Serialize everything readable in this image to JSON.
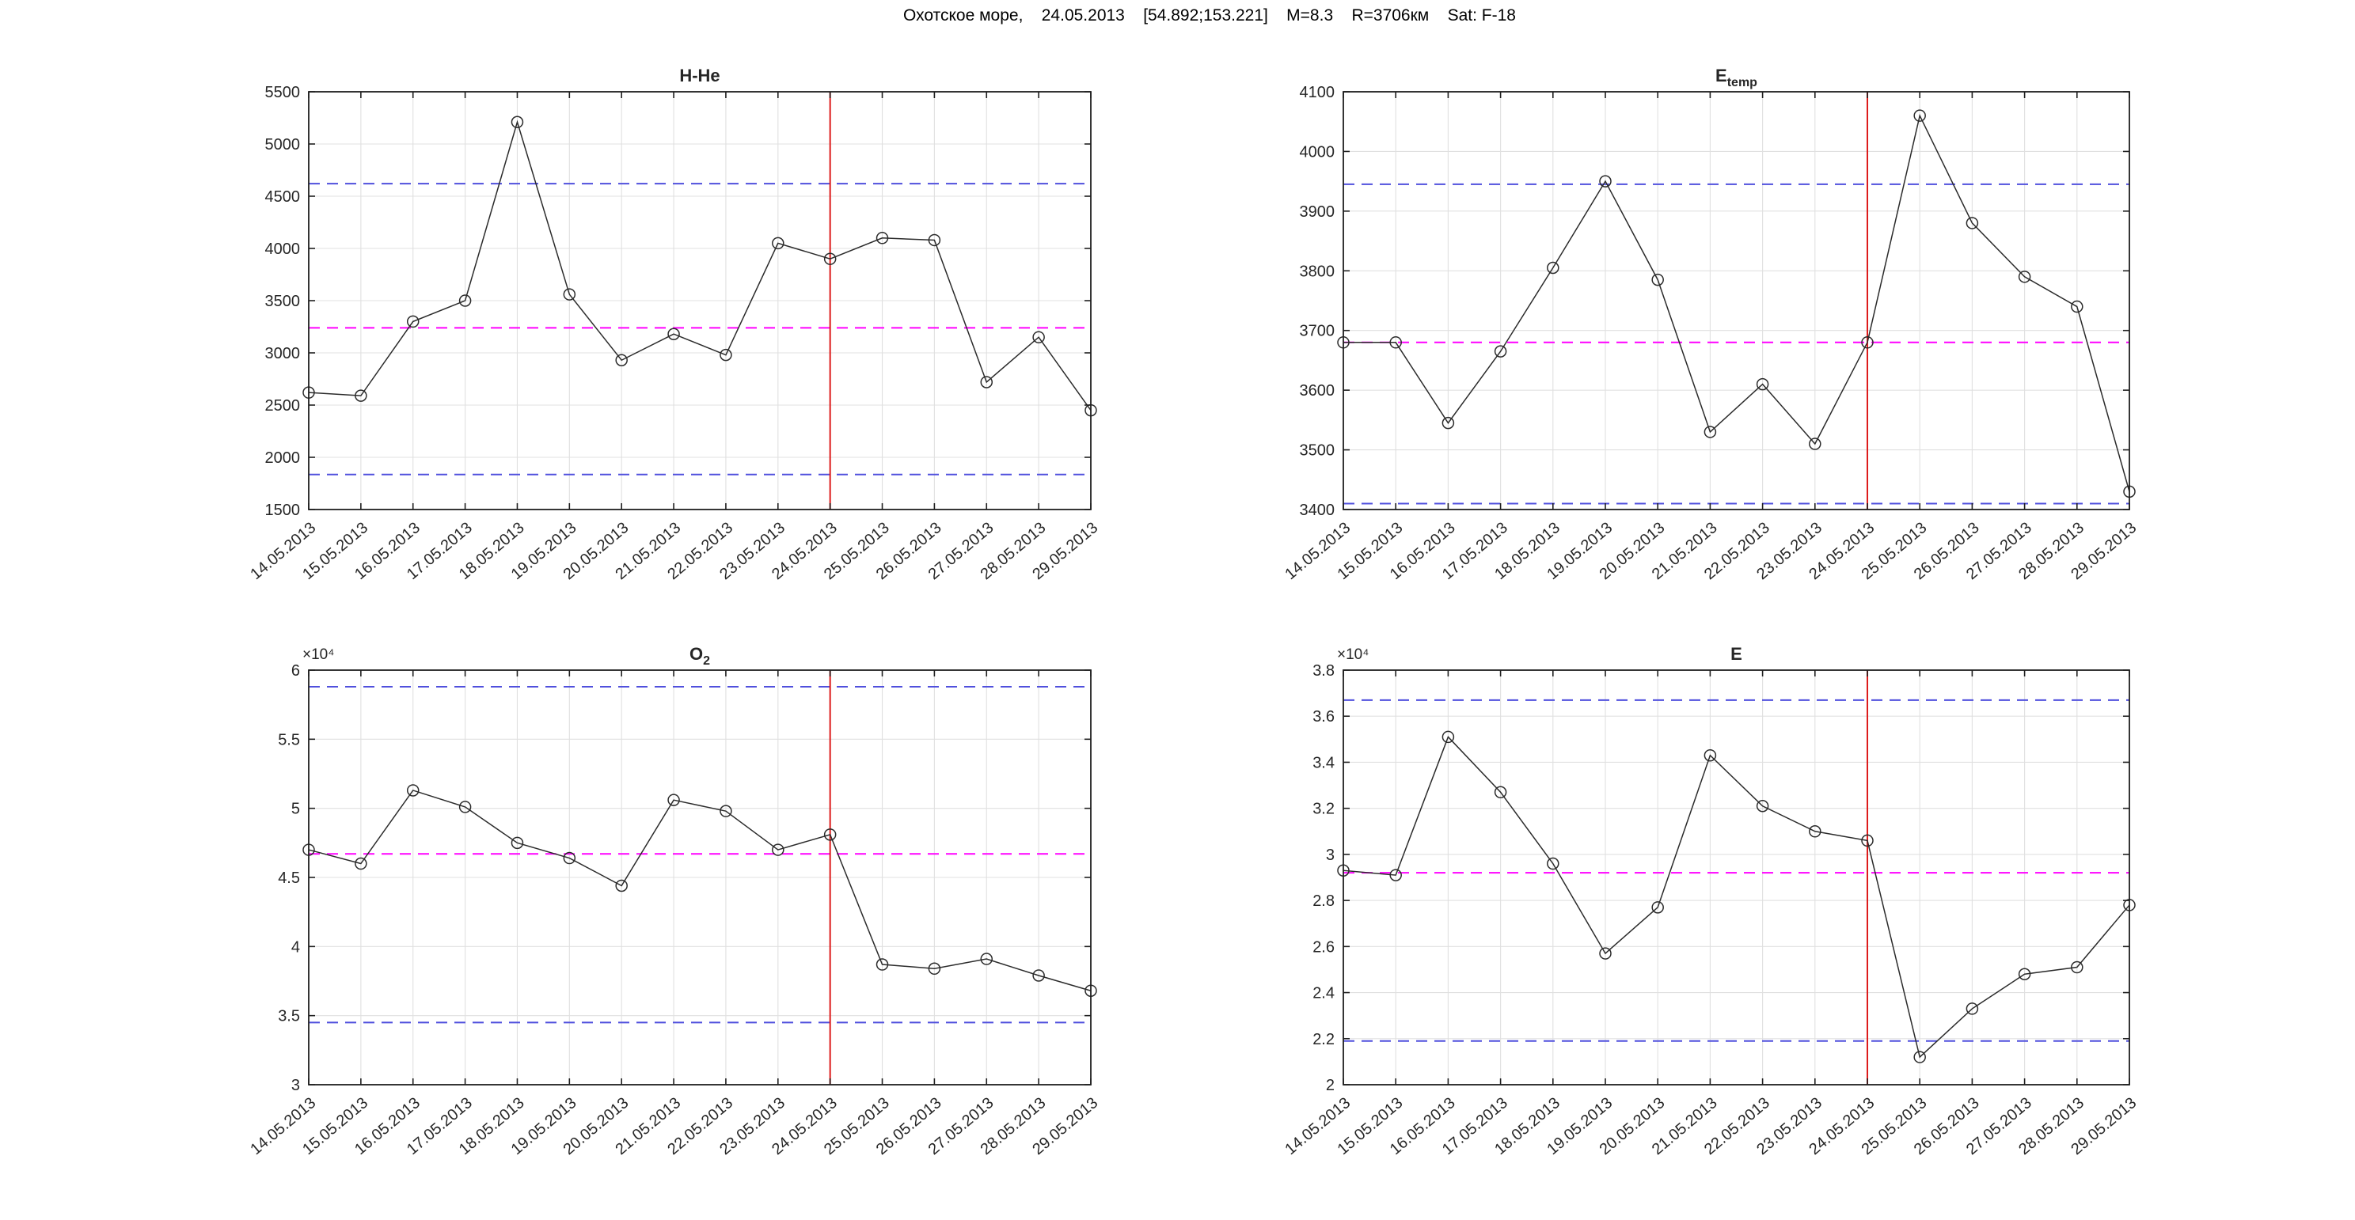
{
  "header": {
    "title": "Охотское море,    24.05.2013    [54.892;153.221]    M=8.3    R=3706км    Sat: F-18"
  },
  "styles": {
    "series_color": "#2b2b2b",
    "marker_color": "#2b2b2b",
    "bound_color": "#5050dd",
    "mean_color": "#ff00ff",
    "event_color": "#dd1c1c",
    "grid_color": "#e0e0e0",
    "axis_color": "#1f1f1f",
    "label_color": "#262626",
    "background": "#ffffff"
  },
  "chart_data": [
    {
      "id": "h-he",
      "type": "line",
      "title_main": "H-He",
      "title_sub": "",
      "x_dates": [
        "14.05.2013",
        "15.05.2013",
        "16.05.2013",
        "17.05.2013",
        "18.05.2013",
        "19.05.2013",
        "20.05.2013",
        "21.05.2013",
        "22.05.2013",
        "23.05.2013",
        "24.05.2013",
        "25.05.2013",
        "26.05.2013",
        "27.05.2013",
        "28.05.2013",
        "29.05.2013"
      ],
      "values": [
        2620,
        2590,
        3300,
        3500,
        5210,
        3560,
        2930,
        3180,
        2980,
        4050,
        3900,
        4100,
        4080,
        2720,
        3150,
        2450
      ],
      "ylim": [
        1500,
        5500
      ],
      "ytick_step": 500,
      "y_scale": 1,
      "y_scale_label": "",
      "upper_bound": 4620,
      "mean_line": 3240,
      "lower_bound": 1835,
      "event_date": "24.05.2013",
      "grid": "on",
      "legend": "none"
    },
    {
      "id": "e-temp",
      "type": "line",
      "title_main": "E",
      "title_sub": "temp",
      "x_dates": [
        "14.05.2013",
        "15.05.2013",
        "16.05.2013",
        "17.05.2013",
        "18.05.2013",
        "19.05.2013",
        "20.05.2013",
        "21.05.2013",
        "22.05.2013",
        "23.05.2013",
        "24.05.2013",
        "25.05.2013",
        "26.05.2013",
        "27.05.2013",
        "28.05.2013",
        "29.05.2013"
      ],
      "values": [
        3680,
        3680,
        3545,
        3665,
        3805,
        3950,
        3785,
        3530,
        3610,
        3510,
        3680,
        4060,
        3880,
        3790,
        3740,
        3430
      ],
      "ylim": [
        3400,
        4100
      ],
      "ytick_step": 100,
      "y_scale": 1,
      "y_scale_label": "",
      "upper_bound": 3945,
      "mean_line": 3680,
      "lower_bound": 3410,
      "event_date": "24.05.2013",
      "grid": "on",
      "legend": "none"
    },
    {
      "id": "o2",
      "type": "line",
      "title_main": "O",
      "title_sub": "2",
      "x_dates": [
        "14.05.2013",
        "15.05.2013",
        "16.05.2013",
        "17.05.2013",
        "18.05.2013",
        "19.05.2013",
        "20.05.2013",
        "21.05.2013",
        "22.05.2013",
        "23.05.2013",
        "24.05.2013",
        "25.05.2013",
        "26.05.2013",
        "27.05.2013",
        "28.05.2013",
        "29.05.2013"
      ],
      "values": [
        47000,
        46000,
        51300,
        50100,
        47500,
        46400,
        44400,
        50600,
        49800,
        47000,
        48100,
        38700,
        38400,
        39100,
        37900,
        36800
      ],
      "ylim": [
        30000,
        60000
      ],
      "ytick_step": 5000,
      "y_scale": 10000,
      "y_scale_label": "×10⁴",
      "upper_bound": 58800,
      "mean_line": 46700,
      "lower_bound": 34500,
      "event_date": "24.05.2013",
      "grid": "on",
      "legend": "none"
    },
    {
      "id": "e",
      "type": "line",
      "title_main": "E",
      "title_sub": "",
      "x_dates": [
        "14.05.2013",
        "15.05.2013",
        "16.05.2013",
        "17.05.2013",
        "18.05.2013",
        "19.05.2013",
        "20.05.2013",
        "21.05.2013",
        "22.05.2013",
        "23.05.2013",
        "24.05.2013",
        "25.05.2013",
        "26.05.2013",
        "27.05.2013",
        "28.05.2013",
        "29.05.2013"
      ],
      "values": [
        29300,
        29100,
        35100,
        32700,
        29600,
        25700,
        27700,
        34300,
        32100,
        31000,
        30600,
        21200,
        23300,
        24800,
        25100,
        27800
      ],
      "ylim": [
        20000,
        38000
      ],
      "ytick_step": 2000,
      "y_scale": 10000,
      "y_scale_label": "×10⁴",
      "upper_bound": 36700,
      "mean_line": 29200,
      "lower_bound": 21900,
      "event_date": "24.05.2013",
      "grid": "on",
      "legend": "none"
    }
  ]
}
